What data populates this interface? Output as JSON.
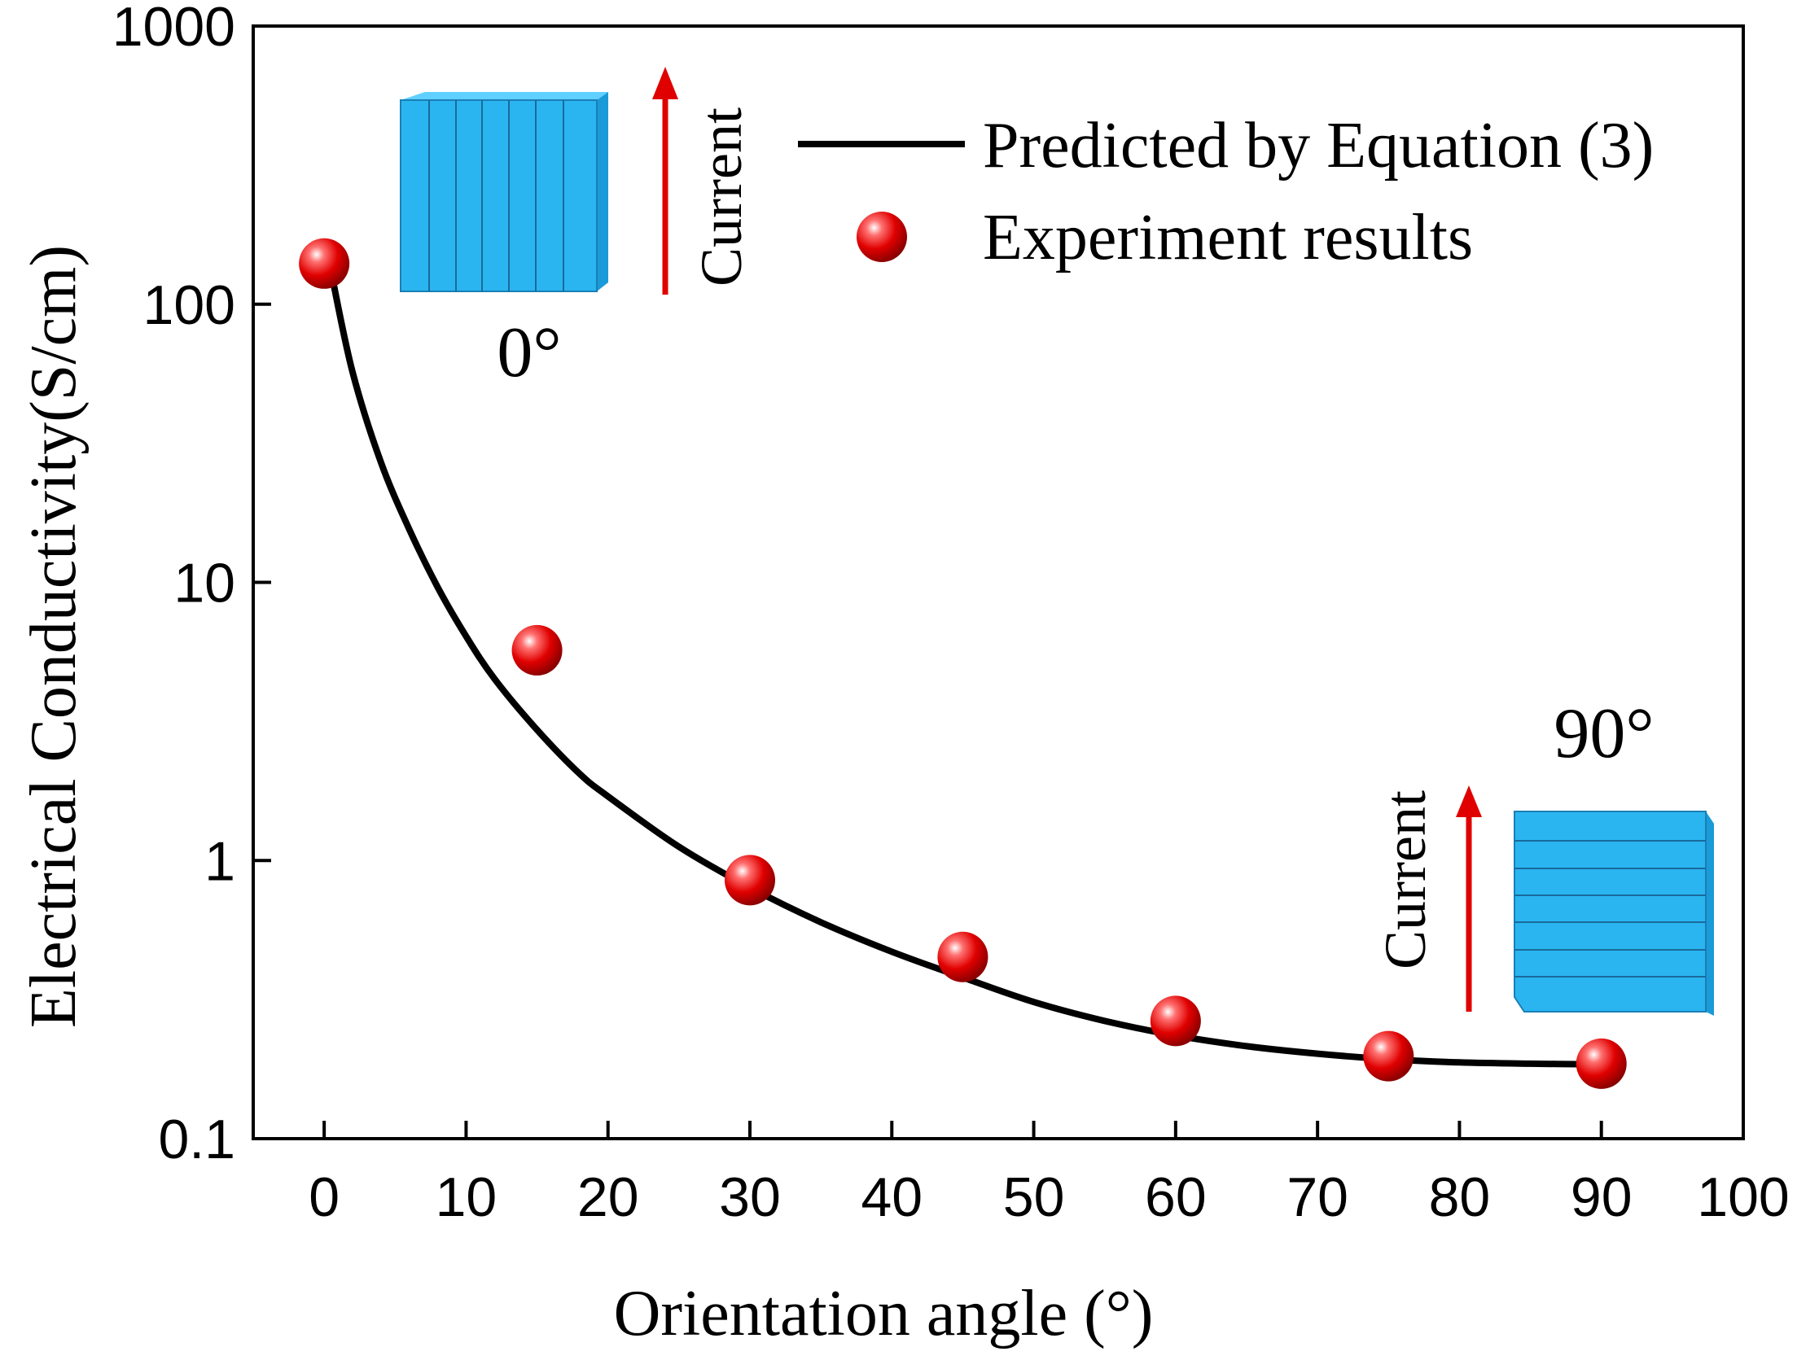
{
  "chart_data": {
    "type": "line+scatter",
    "xlabel": "Orientation angle (°)",
    "ylabel": "Electrical Conductivity(S/cm)",
    "xlim": [
      -5,
      100
    ],
    "ylim": [
      0.1,
      1000
    ],
    "yscale": "log",
    "x_ticks": [
      0,
      10,
      20,
      30,
      40,
      50,
      60,
      70,
      80,
      90,
      100
    ],
    "y_ticks": [
      0.1,
      1,
      10,
      100,
      1000
    ],
    "x_tick_labels": [
      "0",
      "10",
      "20",
      "30",
      "40",
      "50",
      "60",
      "70",
      "80",
      "90",
      "100"
    ],
    "y_tick_labels": [
      "0.1",
      "1",
      "10",
      "100",
      "1000"
    ],
    "legend_position": "top-right",
    "series": [
      {
        "name": "Predicted by Equation (3)",
        "kind": "line",
        "color": "#000000",
        "x": [
          0.5,
          2,
          4,
          6,
          8,
          10,
          12,
          15,
          18,
          20,
          25,
          30,
          35,
          40,
          45,
          50,
          55,
          60,
          65,
          70,
          75,
          80,
          85,
          90
        ],
        "values": [
          130,
          57,
          27,
          15.5,
          9.6,
          6.4,
          4.5,
          2.95,
          2.05,
          1.7,
          1.12,
          0.8,
          0.6,
          0.47,
          0.38,
          0.31,
          0.265,
          0.235,
          0.215,
          0.202,
          0.193,
          0.188,
          0.186,
          0.185
        ]
      },
      {
        "name": "Experiment results",
        "kind": "scatter",
        "color": "#e00000",
        "x": [
          0,
          15,
          30,
          45,
          60,
          75,
          90
        ],
        "values": [
          140,
          5.7,
          0.85,
          0.45,
          0.265,
          0.198,
          0.186
        ]
      }
    ],
    "annotations": [
      {
        "text": "0°",
        "note": "inset: fibers aligned with current"
      },
      {
        "text": "90°",
        "note": "inset: fibers perpendicular to current"
      },
      {
        "text": "Current"
      },
      {
        "text": "Current"
      }
    ]
  },
  "colors": {
    "axis": "#000000",
    "curve": "#000000",
    "marker": "#e00000",
    "arrow": "#e00000",
    "block": "#2ab5f0",
    "block_side": "#1a9ad8"
  }
}
